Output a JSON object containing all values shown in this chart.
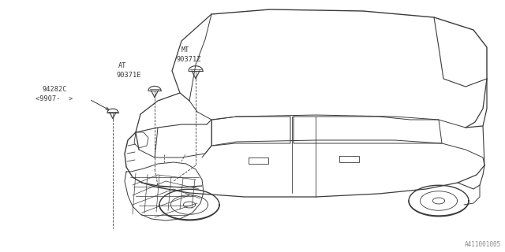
{
  "background_color": "#ffffff",
  "line_color": "#3a3a3a",
  "text_color": "#3a3a3a",
  "diagram_id": "A411001005",
  "label_mt": "MT\n90371Z",
  "label_at": "AT\n90371E",
  "label_94": "94282C",
  "label_9907": "<9907-  >",
  "font_size": 6.0
}
